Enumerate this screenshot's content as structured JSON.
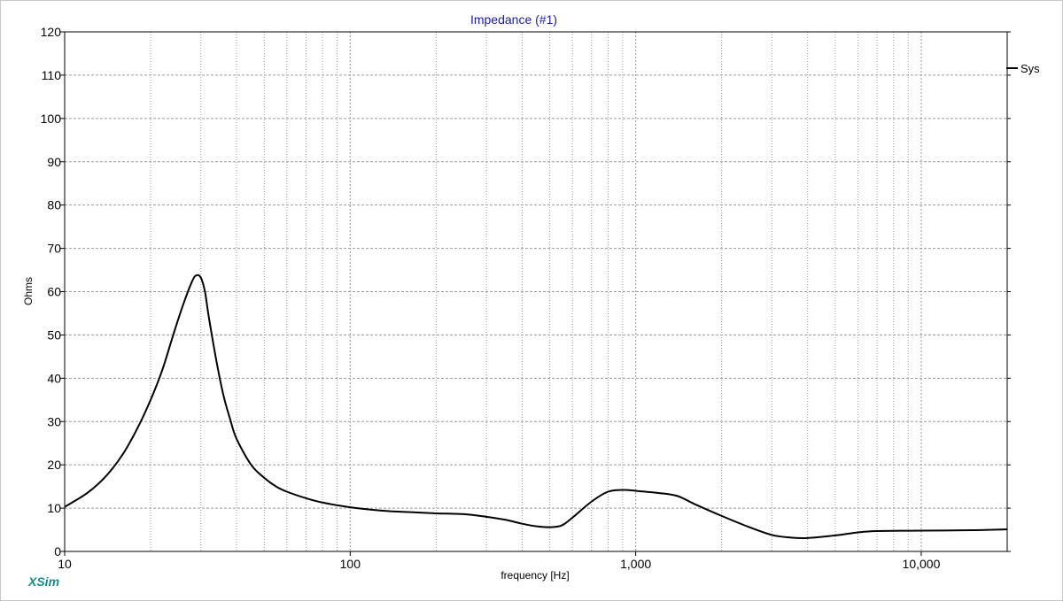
{
  "app": {
    "brand": "XSim",
    "brand_color": "#1a8a8a"
  },
  "chart_data": {
    "type": "line",
    "title": "Impedance (#1)",
    "title_color": "#1a1aaa",
    "xlabel": "frequency [Hz]",
    "ylabel": "Ohms",
    "x_scale": "log",
    "xlim": [
      10,
      20000
    ],
    "ylim": [
      0,
      120
    ],
    "x_ticks": [
      {
        "value": 10,
        "label": "10"
      },
      {
        "value": 100,
        "label": "100"
      },
      {
        "value": 1000,
        "label": "1,000"
      },
      {
        "value": 10000,
        "label": "10,000"
      }
    ],
    "y_ticks": [
      0,
      10,
      20,
      30,
      40,
      50,
      60,
      70,
      80,
      90,
      100,
      110,
      120
    ],
    "grid": true,
    "legend_position": "top-right",
    "series": [
      {
        "name": "Sys",
        "color": "#000000",
        "x": [
          10,
          12,
          14,
          16,
          18,
          20,
          22,
          24,
          26,
          28,
          29,
          30,
          31,
          32,
          34,
          36,
          38,
          40,
          45,
          50,
          55,
          60,
          70,
          80,
          100,
          130,
          160,
          200,
          250,
          300,
          350,
          400,
          450,
          500,
          550,
          600,
          700,
          800,
          900,
          1000,
          1200,
          1400,
          1600,
          2000,
          2500,
          3000,
          3500,
          4000,
          5000,
          6000,
          7000,
          10000,
          15000,
          20000
        ],
        "y": [
          10.3,
          13.5,
          17.5,
          22.5,
          28.5,
          35,
          42,
          50,
          57,
          62.5,
          63.8,
          63.2,
          60,
          54,
          44,
          36,
          30.5,
          26,
          20,
          17,
          15,
          13.8,
          12.3,
          11.3,
          10.2,
          9.4,
          9.1,
          8.8,
          8.6,
          8,
          7.3,
          6.4,
          5.8,
          5.6,
          6,
          7.8,
          11.5,
          13.8,
          14.2,
          14,
          13.5,
          12.8,
          11,
          8.2,
          5.6,
          3.8,
          3.2,
          3.1,
          3.7,
          4.4,
          4.7,
          4.8,
          4.9,
          5.1
        ]
      }
    ]
  }
}
